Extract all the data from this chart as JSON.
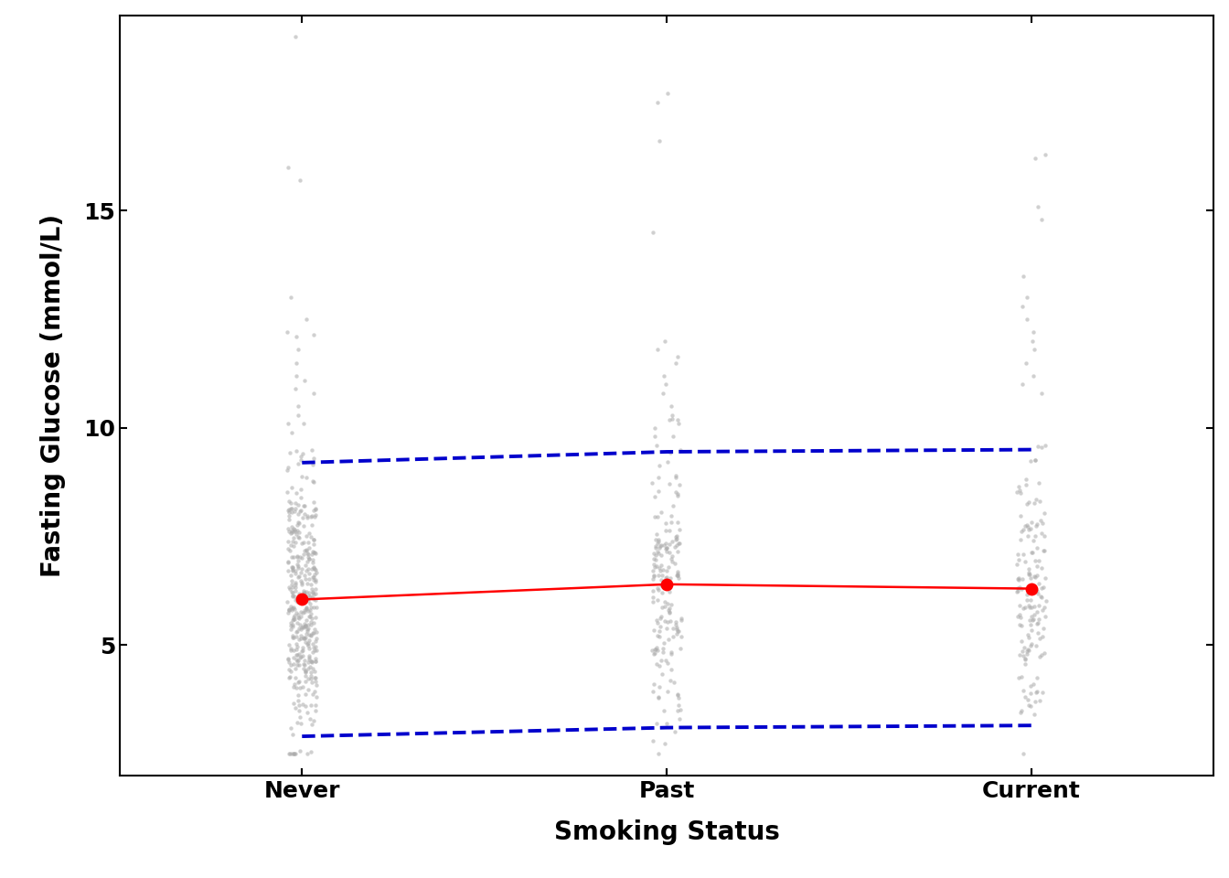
{
  "categories": [
    "Never",
    "Past",
    "Current"
  ],
  "x_positions": [
    1,
    2,
    3
  ],
  "mean_values": [
    6.05,
    6.4,
    6.3
  ],
  "upper_pi": [
    9.2,
    9.45,
    9.5
  ],
  "lower_pi": [
    2.9,
    3.1,
    3.15
  ],
  "xlabel": "Smoking Status",
  "ylabel": "Fasting Glucose (mmol/L)",
  "ylim": [
    2.0,
    19.5
  ],
  "yticks": [
    5,
    10,
    15
  ],
  "background_color": "#ffffff",
  "plot_bg_color": "#ffffff",
  "point_color": "#ff0000",
  "line_color": "#ff0000",
  "band_color": "#0000cc",
  "scatter_color": "#aaaaaa",
  "scatter_alpha": 0.55,
  "scatter_size": 10,
  "jitter_scale": 0.04,
  "n_never": 400,
  "n_past": 180,
  "n_current": 150,
  "never_mean": 6.05,
  "never_sd": 1.55,
  "past_mean": 6.4,
  "past_sd": 1.65,
  "current_mean": 6.3,
  "current_sd": 1.6,
  "never_extras_high": [
    19.0,
    16.0,
    15.7,
    13.0,
    12.5,
    12.2,
    12.1,
    11.8,
    11.5,
    11.2,
    10.9,
    10.8,
    10.5,
    10.3,
    10.1,
    9.9
  ],
  "never_extras_low": [
    3.8,
    3.5,
    3.3,
    3.1
  ],
  "past_extras_high": [
    17.7,
    17.5,
    16.6,
    14.5,
    12.0,
    11.8,
    11.5,
    11.2,
    11.0,
    10.8,
    10.5,
    10.3,
    10.2,
    10.1,
    10.0
  ],
  "past_extras_low": [
    3.8,
    3.5,
    3.0,
    2.8
  ],
  "current_extras_high": [
    16.3,
    16.2,
    15.1,
    14.8,
    13.5,
    13.0,
    12.8,
    12.5,
    12.2,
    12.0,
    11.8,
    11.5,
    11.2,
    11.0,
    10.8
  ],
  "current_extras_low": [
    3.9,
    3.8,
    3.7,
    3.5,
    3.4
  ]
}
